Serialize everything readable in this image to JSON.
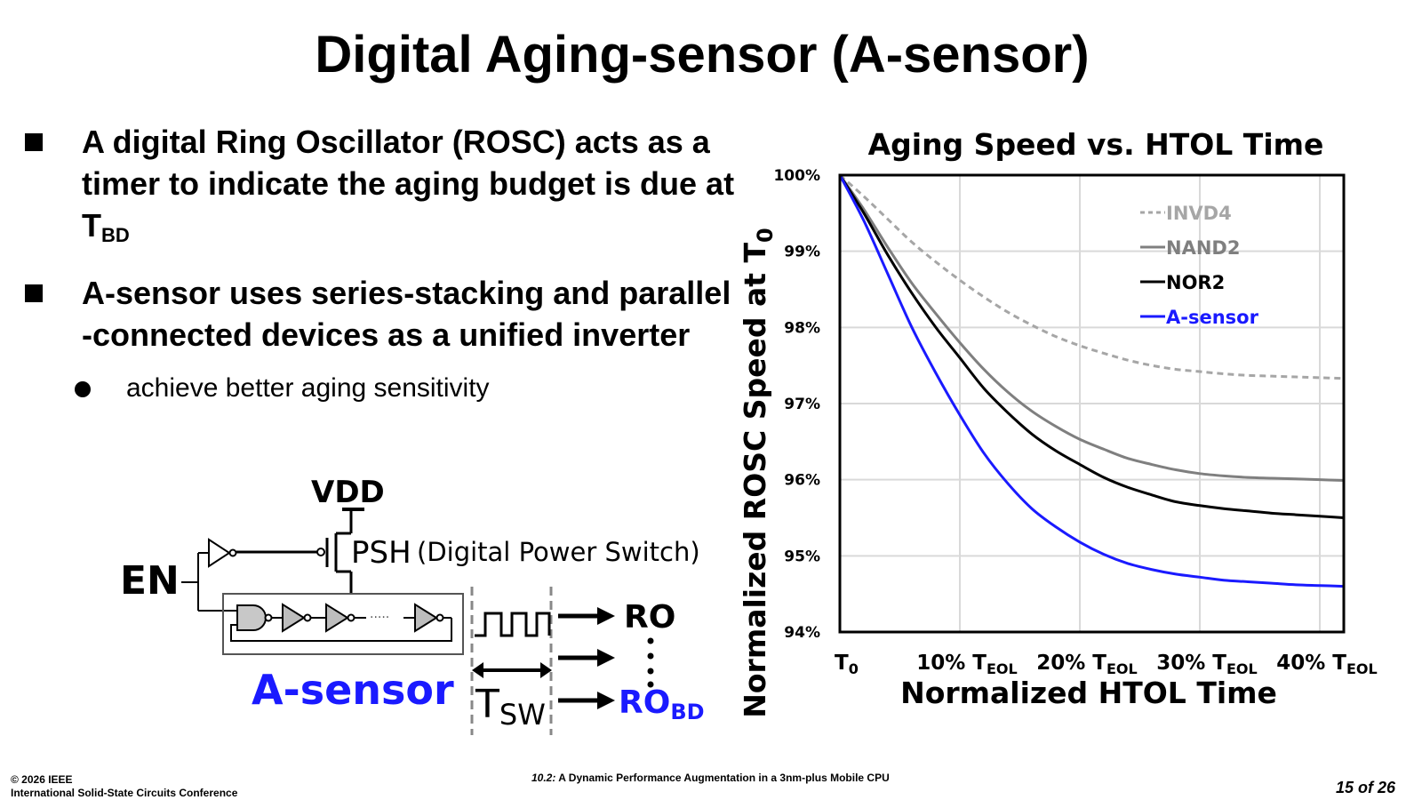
{
  "slide": {
    "title": "Digital Aging-sensor (A-sensor)",
    "bullets": [
      {
        "text": "A digital Ring Oscillator (ROSC) acts as a timer to indicate the aging budget is due at T",
        "sub": "BD"
      },
      {
        "text": "A-sensor uses series-stacking and parallel -connected devices as a unified inverter"
      }
    ],
    "sub_bullets": [
      "achieve better aging sensitivity"
    ]
  },
  "circuit": {
    "vdd": "VDD",
    "psh": "PSH",
    "psh_desc": "(Digital Power Switch)",
    "en": "EN",
    "sensor": "A-sensor",
    "ro": "RO",
    "ro_bd": "RO",
    "ro_bd_sub": "BD",
    "t_sw": "T",
    "t_sw_sub": "SW",
    "dots": "·····",
    "colors": {
      "accent": "#1a1aff"
    }
  },
  "chart_data": {
    "type": "line",
    "title": "Aging Speed vs. HTOL Time",
    "xlabel": "Normalized HTOL Time",
    "ylabel_main": "Normalized ROSC Speed at T",
    "ylabel_sub": "0",
    "x_ticks": [
      {
        "label": "T",
        "sub": "0",
        "value": 0
      },
      {
        "label": "10% T",
        "sub": "EOL",
        "value": 10
      },
      {
        "label": "20% T",
        "sub": "EOL",
        "value": 20
      },
      {
        "label": "30% T",
        "sub": "EOL",
        "value": 30
      },
      {
        "label": "40% T",
        "sub": "EOL",
        "value": 40
      }
    ],
    "y_ticks": [
      "100%",
      "99%",
      "98%",
      "97%",
      "96%",
      "95%",
      "94%"
    ],
    "y_tick_values": [
      100,
      99,
      98,
      97,
      96,
      95,
      94
    ],
    "xlim": [
      0,
      42
    ],
    "ylim": [
      94,
      100
    ],
    "x": [
      0,
      2,
      4,
      6,
      8,
      10,
      12,
      14,
      16,
      18,
      20,
      22,
      24,
      26,
      28,
      30,
      32,
      34,
      36,
      38,
      40,
      42
    ],
    "series": [
      {
        "name": "INVD4",
        "color": "#a6a6a6",
        "dash": true,
        "values": [
          100,
          99.72,
          99.42,
          99.12,
          98.86,
          98.62,
          98.4,
          98.2,
          98.03,
          97.88,
          97.76,
          97.66,
          97.57,
          97.5,
          97.45,
          97.42,
          97.39,
          97.37,
          97.36,
          97.35,
          97.34,
          97.33
        ]
      },
      {
        "name": "NAND2",
        "color": "#7f7f7f",
        "dash": false,
        "values": [
          100,
          99.55,
          99.05,
          98.58,
          98.18,
          97.8,
          97.45,
          97.15,
          96.9,
          96.7,
          96.53,
          96.4,
          96.28,
          96.2,
          96.13,
          96.08,
          96.05,
          96.03,
          96.02,
          96.01,
          96.0,
          95.99
        ]
      },
      {
        "name": "NOR2",
        "color": "#000000",
        "dash": false,
        "values": [
          100,
          99.5,
          98.95,
          98.45,
          98.0,
          97.6,
          97.2,
          96.88,
          96.6,
          96.38,
          96.2,
          96.03,
          95.9,
          95.8,
          95.71,
          95.66,
          95.62,
          95.59,
          95.56,
          95.54,
          95.52,
          95.5
        ]
      },
      {
        "name": "A-sensor",
        "color": "#1a1aff",
        "dash": false,
        "values": [
          100,
          99.4,
          98.7,
          98.0,
          97.4,
          96.85,
          96.35,
          95.95,
          95.62,
          95.38,
          95.18,
          95.02,
          94.9,
          94.82,
          94.76,
          94.72,
          94.68,
          94.66,
          94.64,
          94.62,
          94.61,
          94.6
        ]
      }
    ]
  },
  "footer": {
    "copyright": "© 2026 IEEE",
    "conference": "International Solid-State Circuits Conference",
    "paper_no": "10.2:",
    "paper_title": " A Dynamic Performance Augmentation in a 3nm-plus Mobile CPU",
    "page": "15 of 26"
  }
}
